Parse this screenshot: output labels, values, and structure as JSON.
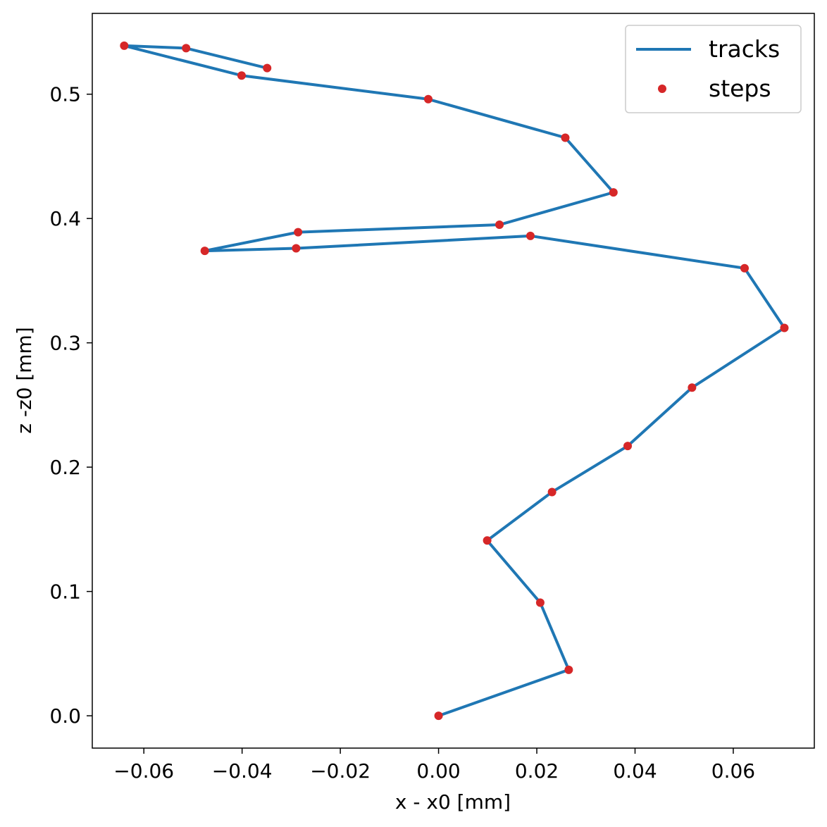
{
  "chart_data": {
    "type": "line",
    "xlabel": "x - x0 [mm]",
    "ylabel": "z -z0 [mm]",
    "xlim": [
      -0.0705,
      0.0765
    ],
    "ylim": [
      -0.026,
      0.565
    ],
    "x_ticks": [
      -0.06,
      -0.04,
      -0.02,
      0.0,
      0.02,
      0.04,
      0.06
    ],
    "x_tick_labels": [
      "−0.06",
      "−0.04",
      "−0.02",
      "0.00",
      "0.02",
      "0.04",
      "0.06"
    ],
    "y_ticks": [
      0.0,
      0.1,
      0.2,
      0.3,
      0.4,
      0.5
    ],
    "y_tick_labels": [
      "0.0",
      "0.1",
      "0.2",
      "0.3",
      "0.4",
      "0.5"
    ],
    "grid": false,
    "legend_position": "top-right",
    "legend": [
      {
        "label": "tracks",
        "marker": "line"
      },
      {
        "label": "steps",
        "marker": "dot"
      }
    ],
    "colors": {
      "tracks": "#1f77b4",
      "steps": "#d62728"
    },
    "series": [
      {
        "name": "tracks",
        "x": [
          0.0,
          0.0265,
          0.0207,
          0.0099,
          0.0231,
          0.0385,
          0.0516,
          0.0704,
          0.0623,
          0.0187,
          -0.029,
          -0.0476,
          -0.0286,
          0.0124,
          0.0356,
          0.0258,
          -0.0021,
          -0.0401,
          -0.064,
          -0.0514,
          -0.0349
        ],
        "y": [
          0.0,
          0.037,
          0.091,
          0.141,
          0.18,
          0.217,
          0.264,
          0.312,
          0.36,
          0.386,
          0.376,
          0.374,
          0.389,
          0.395,
          0.421,
          0.465,
          0.496,
          0.515,
          0.539,
          0.537,
          0.521
        ]
      }
    ]
  }
}
